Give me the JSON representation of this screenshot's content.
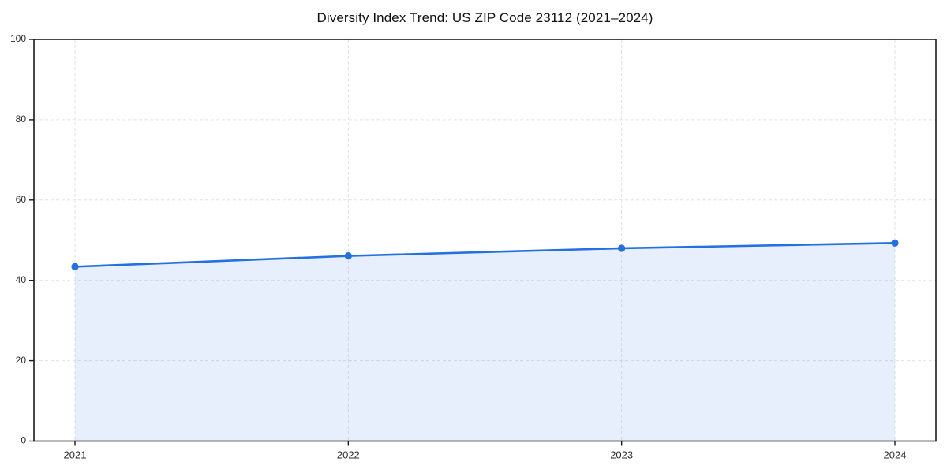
{
  "chart_data": {
    "type": "area",
    "title": "Diversity Index Trend: US ZIP Code 23112 (2021–2024)",
    "series_name": "Diversity Index",
    "categories": [
      "2021",
      "2022",
      "2023",
      "2024"
    ],
    "values": [
      43.4,
      46.1,
      48.0,
      49.3
    ],
    "xlabel": "",
    "ylabel": "",
    "ylim": [
      0,
      100
    ],
    "yticks": [
      0,
      20,
      40,
      60,
      80,
      100
    ],
    "grid": true,
    "grid_style": "dashed",
    "legend_position": "none",
    "marker": "circle",
    "colors": {
      "line": "#2470E0",
      "marker": "#2470E0",
      "fill": "#2470E0",
      "fill_opacity": 0.11,
      "grid": "#E2E2E2",
      "axis": "#1A1A1A",
      "tick_label": "#2B2B2B",
      "title": "#111111",
      "background": "#FFFFFF"
    }
  }
}
